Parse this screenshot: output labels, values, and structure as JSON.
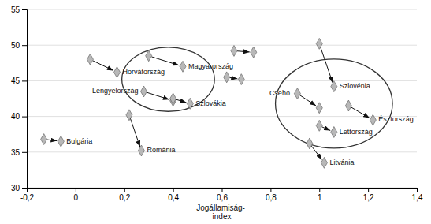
{
  "chart_data": {
    "type": "scatter",
    "xlabel": "Jogállamiság-\nindex",
    "points": [
      {
        "label": "Bulgária",
        "x": [
          -0.13,
          -0.06
        ],
        "y": [
          36.8,
          36.5
        ]
      },
      {
        "label": "Horvátország",
        "x": [
          0.06,
          0.17
        ],
        "y": [
          48.0,
          46.2
        ]
      },
      {
        "label": "Magyarország",
        "x": [
          0.3,
          0.44
        ],
        "y": [
          48.5,
          47.0
        ]
      },
      {
        "label": "Lengyelország",
        "x": [
          0.28,
          0.4
        ],
        "y": [
          43.5,
          42.2
        ]
      },
      {
        "label": "Szlovákia",
        "x": [
          0.4,
          0.47
        ],
        "y": [
          42.5,
          41.8
        ]
      },
      {
        "label": "Románia",
        "x": [
          0.22,
          0.27
        ],
        "y": [
          40.2,
          35.2
        ]
      },
      {
        "label": null,
        "x": [
          0.65,
          0.73
        ],
        "y": [
          49.2,
          49.0
        ]
      },
      {
        "label": null,
        "x": [
          0.62,
          0.68
        ],
        "y": [
          45.5,
          45.2
        ]
      },
      {
        "label": "Szlovénia",
        "x": [
          1.0,
          1.06
        ],
        "y": [
          50.2,
          44.2
        ]
      },
      {
        "label": "Cseho.",
        "x": [
          0.91,
          1.0
        ],
        "y": [
          43.2,
          41.2
        ]
      },
      {
        "label": "Észtország",
        "x": [
          1.12,
          1.22
        ],
        "y": [
          41.5,
          39.5
        ]
      },
      {
        "label": "Lettország",
        "x": [
          1.0,
          1.06
        ],
        "y": [
          38.7,
          37.8
        ]
      },
      {
        "label": "Litvánia",
        "x": [
          0.96,
          1.02
        ],
        "y": [
          36.2,
          33.5
        ]
      }
    ],
    "ellipses": [
      {
        "cx": 0.38,
        "cy": 45.2,
        "width": 0.38,
        "height": 9.0
      },
      {
        "cx": 1.06,
        "cy": 41.8,
        "width": 0.48,
        "height": 12.5
      }
    ],
    "marker": "diamond",
    "color": "#b8b8b8",
    "xlim": [
      -0.2,
      1.4
    ],
    "ylim": [
      30,
      55
    ],
    "xticks": [
      {
        "value": -0.2,
        "label": "-0,2"
      },
      0,
      {
        "value": 0.2,
        "label": "0,2"
      },
      {
        "value": 0.4,
        "label": "0,4"
      },
      {
        "value": 0.6,
        "label": "0,6"
      },
      {
        "value": 0.8,
        "label": "0,8"
      },
      1,
      {
        "value": 1.2,
        "label": "1,2"
      },
      {
        "value": 1.4,
        "label": "1,4"
      }
    ],
    "yticks": [
      30,
      35,
      40,
      45,
      50,
      55
    ],
    "grid": "y"
  }
}
